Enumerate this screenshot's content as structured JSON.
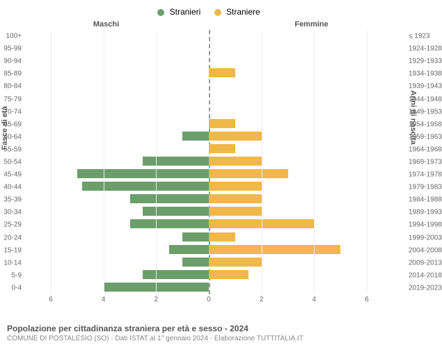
{
  "legend": {
    "male": {
      "label": "Stranieri",
      "color": "#6b9e6b"
    },
    "female": {
      "label": "Straniere",
      "color": "#f0b84a"
    }
  },
  "headers": {
    "left": "Maschi",
    "right": "Femmine"
  },
  "axis_titles": {
    "left": "Fasce di età",
    "right": "Anni di nascita"
  },
  "x_axis": {
    "max": 6,
    "ticks": [
      0,
      2,
      4,
      6
    ]
  },
  "rows": [
    {
      "age": "100+",
      "birth": "≤ 1923",
      "m": 0,
      "f": 0
    },
    {
      "age": "95-99",
      "birth": "1924-1928",
      "m": 0,
      "f": 0
    },
    {
      "age": "90-94",
      "birth": "1929-1933",
      "m": 0,
      "f": 0
    },
    {
      "age": "85-89",
      "birth": "1934-1938",
      "m": 0,
      "f": 1
    },
    {
      "age": "80-84",
      "birth": "1939-1943",
      "m": 0,
      "f": 0
    },
    {
      "age": "75-79",
      "birth": "1944-1948",
      "m": 0,
      "f": 0
    },
    {
      "age": "70-74",
      "birth": "1949-1953",
      "m": 0,
      "f": 0
    },
    {
      "age": "65-69",
      "birth": "1954-1958",
      "m": 0,
      "f": 1
    },
    {
      "age": "60-64",
      "birth": "1959-1963",
      "m": 1,
      "f": 2
    },
    {
      "age": "55-59",
      "birth": "1964-1968",
      "m": 0,
      "f": 1
    },
    {
      "age": "50-54",
      "birth": "1969-1973",
      "m": 2.5,
      "f": 2
    },
    {
      "age": "45-49",
      "birth": "1974-1978",
      "m": 5,
      "f": 3
    },
    {
      "age": "40-44",
      "birth": "1979-1983",
      "m": 4.8,
      "f": 2
    },
    {
      "age": "35-39",
      "birth": "1984-1988",
      "m": 3,
      "f": 2
    },
    {
      "age": "30-34",
      "birth": "1989-1993",
      "m": 2.5,
      "f": 2
    },
    {
      "age": "25-29",
      "birth": "1994-1998",
      "m": 3,
      "f": 4
    },
    {
      "age": "20-24",
      "birth": "1999-2003",
      "m": 1,
      "f": 1
    },
    {
      "age": "15-19",
      "birth": "2004-2008",
      "m": 1.5,
      "f": 5
    },
    {
      "age": "10-14",
      "birth": "2009-2013",
      "m": 1,
      "f": 2
    },
    {
      "age": "5-9",
      "birth": "2014-2018",
      "m": 2.5,
      "f": 1.5
    },
    {
      "age": "0-4",
      "birth": "2019-2023",
      "m": 4,
      "f": 0
    }
  ],
  "title": "Popolazione per cittadinanza straniera per età e sesso - 2024",
  "subtitle": "COMUNE DI POSTALESIO (SO) - Dati ISTAT al 1° gennaio 2024 - Elaborazione TUTTITALIA.IT",
  "colors": {
    "background": "#ffffff",
    "text_muted": "#666666",
    "grid": "#eeeeee",
    "center_dash": "#999999"
  }
}
